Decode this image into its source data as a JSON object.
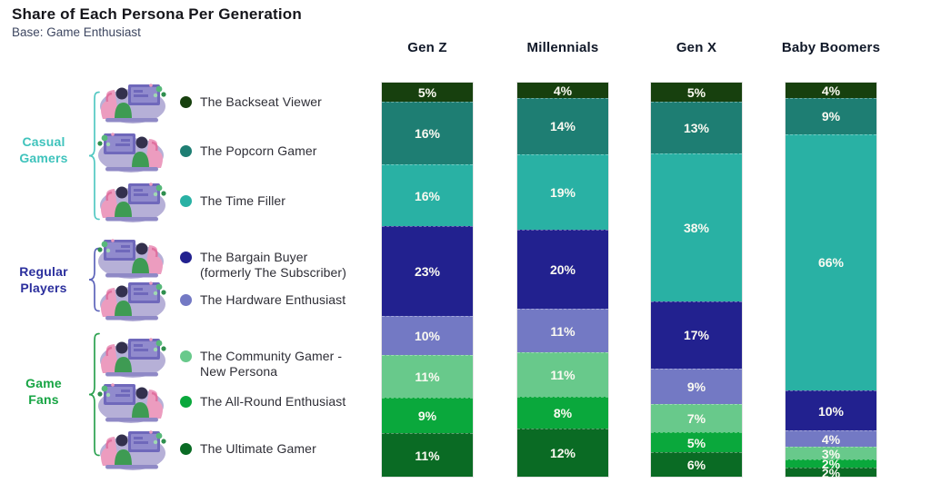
{
  "title": "Share of Each Persona Per Generation",
  "subtitle": "Base: Game Enthusiast",
  "generations": [
    "Gen Z",
    "Millennials",
    "Gen X",
    "Baby Boomers"
  ],
  "groups": [
    {
      "label": "Casual Gamers",
      "color": "#3fc3bc",
      "brace_color": "#52c8c2",
      "personas": [
        "The Backseat Viewer",
        "The Popcorn Gamer",
        "The Time Filler"
      ]
    },
    {
      "label": "Regular Players",
      "color": "#2b2f9d",
      "brace_color": "#5d64ba",
      "personas": [
        "The Bargain Buyer (formerly The Subscriber)",
        "The Hardware Enthusiast"
      ]
    },
    {
      "label": "Game Fans",
      "color": "#16a443",
      "brace_color": "#2aa14f",
      "personas": [
        "The Community Gamer - New Persona",
        "The All-Round Enthusiast",
        "The Ultimate Gamer"
      ]
    }
  ],
  "personas": [
    {
      "lines": [
        "The Backseat Viewer"
      ],
      "color": "#17400e"
    },
    {
      "lines": [
        "The Popcorn Gamer"
      ],
      "color": "#1e7e73"
    },
    {
      "lines": [
        "The Time Filler"
      ],
      "color": "#29b1a4"
    },
    {
      "lines": [
        "The Bargain Buyer",
        "(formerly The Subscriber)"
      ],
      "color": "#22218f"
    },
    {
      "lines": [
        "The Hardware Enthusiast"
      ],
      "color": "#7379c4"
    },
    {
      "lines": [
        "The Community Gamer -",
        "New Persona"
      ],
      "color": "#68c98b"
    },
    {
      "lines": [
        "The All-Round Enthusiast"
      ],
      "color": "#0aa83c"
    },
    {
      "lines": [
        "The Ultimate Gamer"
      ],
      "color": "#0a6b24"
    }
  ],
  "chart_data": {
    "type": "bar",
    "stacked": true,
    "orientation": "vertical",
    "unit": "%",
    "title": "Share of Each Persona Per Generation",
    "subtitle": "Base: Game Enthusiast",
    "categories": [
      "Gen Z",
      "Millennials",
      "Gen X",
      "Baby Boomers"
    ],
    "series": [
      {
        "name": "The Backseat Viewer",
        "group": "Casual Gamers",
        "color": "#17400e",
        "values": [
          5,
          4,
          5,
          4
        ]
      },
      {
        "name": "The Popcorn Gamer",
        "group": "Casual Gamers",
        "color": "#1e7e73",
        "values": [
          16,
          14,
          13,
          9
        ]
      },
      {
        "name": "The Time Filler",
        "group": "Casual Gamers",
        "color": "#29b1a4",
        "values": [
          16,
          19,
          38,
          66
        ]
      },
      {
        "name": "The Bargain Buyer (formerly The Subscriber)",
        "group": "Regular Players",
        "color": "#22218f",
        "values": [
          23,
          20,
          17,
          10
        ]
      },
      {
        "name": "The Hardware Enthusiast",
        "group": "Regular Players",
        "color": "#7379c4",
        "values": [
          10,
          11,
          9,
          4
        ]
      },
      {
        "name": "The Community Gamer - New Persona",
        "group": "Game Fans",
        "color": "#68c98b",
        "values": [
          11,
          11,
          7,
          3
        ]
      },
      {
        "name": "The All-Round Enthusiast",
        "group": "Game Fans",
        "color": "#0aa83c",
        "values": [
          9,
          8,
          5,
          2
        ]
      },
      {
        "name": "The Ultimate Gamer",
        "group": "Game Fans",
        "color": "#0a6b24",
        "values": [
          11,
          12,
          6,
          2
        ]
      }
    ],
    "value_labels": "percent shown inside each segment",
    "legend_position": "left"
  }
}
